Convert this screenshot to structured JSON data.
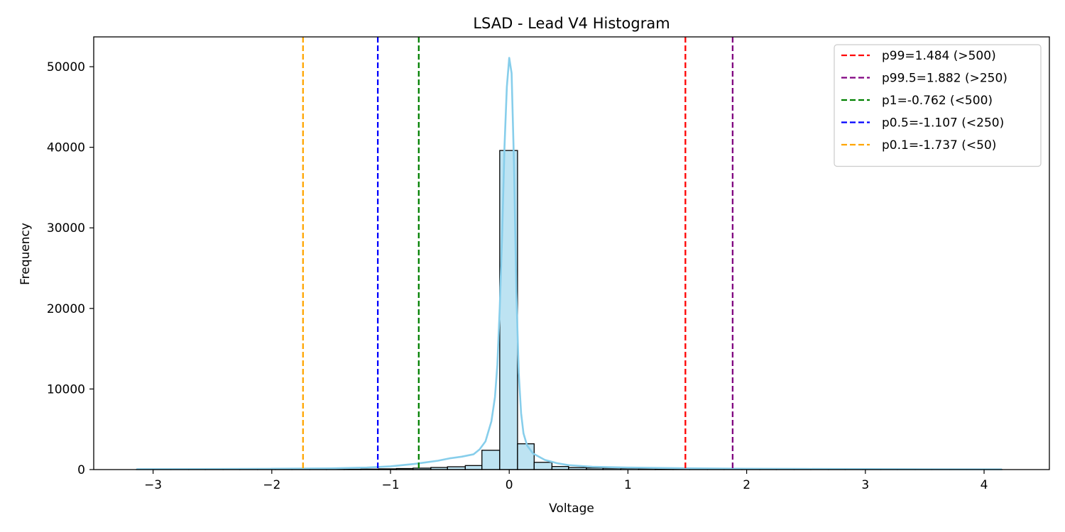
{
  "chart_data": {
    "type": "bar",
    "title": "LSAD - Lead V4 Histogram",
    "xlabel": "Voltage",
    "ylabel": "Frequency",
    "xlim": [
      -3.5,
      4.55
    ],
    "ylim": [
      0,
      53700
    ],
    "xticks": [
      -3,
      -2,
      -1,
      0,
      1,
      2,
      3,
      4
    ],
    "xtick_labels": [
      "−3",
      "−2",
      "−1",
      "0",
      "1",
      "2",
      "3",
      "4"
    ],
    "yticks": [
      0,
      10000,
      20000,
      30000,
      40000,
      50000
    ],
    "ytick_labels": [
      "0",
      "10000",
      "20000",
      "30000",
      "40000",
      "50000"
    ],
    "grid": false,
    "legend_position": "top-right",
    "bar_color": "#BDE3F2",
    "bar_edge_color": "#000000",
    "bins": [
      {
        "x0": -3.14,
        "x1": -2.99,
        "count": 5
      },
      {
        "x0": -2.99,
        "x1": -2.85,
        "count": 5
      },
      {
        "x0": -2.85,
        "x1": -2.7,
        "count": 5
      },
      {
        "x0": -2.7,
        "x1": -2.56,
        "count": 8
      },
      {
        "x0": -2.56,
        "x1": -2.41,
        "count": 8
      },
      {
        "x0": -2.41,
        "x1": -2.27,
        "count": 10
      },
      {
        "x0": -2.27,
        "x1": -2.12,
        "count": 10
      },
      {
        "x0": -2.12,
        "x1": -1.97,
        "count": 12
      },
      {
        "x0": -1.97,
        "x1": -1.83,
        "count": 15
      },
      {
        "x0": -1.83,
        "x1": -1.68,
        "count": 18
      },
      {
        "x0": -1.68,
        "x1": -1.54,
        "count": 22
      },
      {
        "x0": -1.54,
        "x1": -1.39,
        "count": 30
      },
      {
        "x0": -1.39,
        "x1": -1.25,
        "count": 40
      },
      {
        "x0": -1.25,
        "x1": -1.1,
        "count": 60
      },
      {
        "x0": -1.1,
        "x1": -0.95,
        "count": 90
      },
      {
        "x0": -0.95,
        "x1": -0.81,
        "count": 130
      },
      {
        "x0": -0.81,
        "x1": -0.66,
        "count": 180
      },
      {
        "x0": -0.66,
        "x1": -0.52,
        "count": 260
      },
      {
        "x0": -0.52,
        "x1": -0.37,
        "count": 350
      },
      {
        "x0": -0.37,
        "x1": -0.23,
        "count": 500
      },
      {
        "x0": -0.23,
        "x1": -0.08,
        "count": 2400
      },
      {
        "x0": -0.08,
        "x1": 0.07,
        "count": 39600
      },
      {
        "x0": 0.07,
        "x1": 0.21,
        "count": 3200
      },
      {
        "x0": 0.21,
        "x1": 0.36,
        "count": 900
      },
      {
        "x0": 0.36,
        "x1": 0.5,
        "count": 380
      },
      {
        "x0": 0.5,
        "x1": 0.65,
        "count": 250
      },
      {
        "x0": 0.65,
        "x1": 0.79,
        "count": 200
      },
      {
        "x0": 0.79,
        "x1": 0.94,
        "count": 170
      },
      {
        "x0": 0.94,
        "x1": 1.09,
        "count": 150
      },
      {
        "x0": 1.09,
        "x1": 1.23,
        "count": 130
      },
      {
        "x0": 1.23,
        "x1": 1.38,
        "count": 110
      },
      {
        "x0": 1.38,
        "x1": 1.52,
        "count": 90
      },
      {
        "x0": 1.52,
        "x1": 1.67,
        "count": 75
      },
      {
        "x0": 1.67,
        "x1": 1.81,
        "count": 60
      },
      {
        "x0": 1.81,
        "x1": 1.96,
        "count": 50
      },
      {
        "x0": 1.96,
        "x1": 2.11,
        "count": 40
      },
      {
        "x0": 2.11,
        "x1": 2.25,
        "count": 35
      },
      {
        "x0": 2.25,
        "x1": 2.4,
        "count": 30
      },
      {
        "x0": 2.4,
        "x1": 2.54,
        "count": 25
      },
      {
        "x0": 2.54,
        "x1": 2.69,
        "count": 20
      },
      {
        "x0": 2.69,
        "x1": 2.83,
        "count": 18
      },
      {
        "x0": 2.83,
        "x1": 2.98,
        "count": 15
      },
      {
        "x0": 2.98,
        "x1": 3.13,
        "count": 12
      },
      {
        "x0": 3.13,
        "x1": 3.27,
        "count": 10
      },
      {
        "x0": 3.27,
        "x1": 3.42,
        "count": 8
      },
      {
        "x0": 3.42,
        "x1": 3.56,
        "count": 6
      },
      {
        "x0": 3.56,
        "x1": 3.71,
        "count": 5
      },
      {
        "x0": 3.71,
        "x1": 3.85,
        "count": 4
      },
      {
        "x0": 3.85,
        "x1": 4.0,
        "count": 3
      },
      {
        "x0": 4.0,
        "x1": 4.15,
        "count": 3
      }
    ],
    "kde": {
      "color": "#87CEEB",
      "x": [
        -3.14,
        -2.5,
        -2.0,
        -1.5,
        -1.2,
        -1.0,
        -0.8,
        -0.6,
        -0.5,
        -0.4,
        -0.3,
        -0.25,
        -0.2,
        -0.15,
        -0.12,
        -0.1,
        -0.08,
        -0.06,
        -0.04,
        -0.02,
        0.0,
        0.02,
        0.04,
        0.06,
        0.08,
        0.1,
        0.12,
        0.15,
        0.2,
        0.3,
        0.4,
        0.5,
        0.7,
        1.0,
        1.5,
        2.0,
        2.5,
        3.0,
        3.5,
        4.15
      ],
      "y": [
        50,
        70,
        100,
        150,
        250,
        400,
        700,
        1100,
        1400,
        1600,
        1900,
        2500,
        3500,
        6000,
        9000,
        13000,
        20000,
        29000,
        40000,
        47500,
        51100,
        49200,
        38000,
        22000,
        12000,
        7000,
        4500,
        3000,
        2000,
        1200,
        800,
        550,
        350,
        250,
        160,
        110,
        80,
        60,
        45,
        30
      ]
    },
    "vlines": [
      {
        "label": "p99=1.484 (>500)",
        "x": 1.484,
        "color": "#FF0000"
      },
      {
        "label": "p99.5=1.882 (>250)",
        "x": 1.882,
        "color": "#800080"
      },
      {
        "label": "p1=-0.762 (<500)",
        "x": -0.762,
        "color": "#008000"
      },
      {
        "label": "p0.5=-1.107 (<250)",
        "x": -1.107,
        "color": "#0000FF"
      },
      {
        "label": "p0.1=-1.737 (<50)",
        "x": -1.737,
        "color": "#FFA500"
      }
    ]
  }
}
